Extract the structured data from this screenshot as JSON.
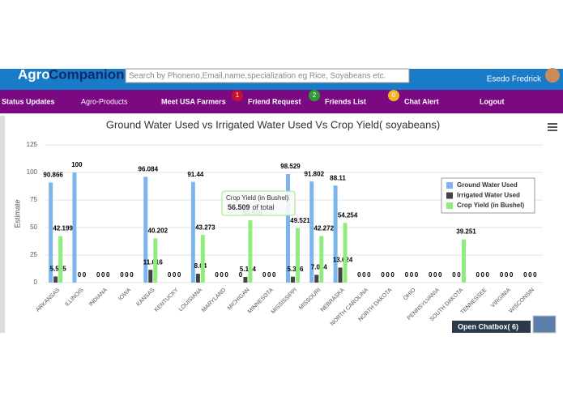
{
  "header": {
    "logo_a": "Agro",
    "logo_b": "Companion",
    "search_placeholder": "Search by Phoneno,Email,name,specialization eg Rice, Soyabeans etc.",
    "user": "Esedo Fredrick"
  },
  "nav": [
    {
      "label": "Status Updates"
    },
    {
      "label": "Agro-Products"
    },
    {
      "label": "Meet USA Farmers"
    },
    {
      "badge": 1,
      "badge_color": "#c8102e",
      "label": "Friend Request"
    },
    {
      "badge": 2,
      "badge_color": "#2e9b2e",
      "label": "Friends List"
    },
    {
      "badge": 0,
      "badge_color": "#f0b323",
      "label": "Chat Alert"
    },
    {
      "label": "Logout"
    }
  ],
  "chart_data": {
    "type": "bar",
    "title": "Ground Water Used vs Irrigated Water Used Vs Crop Yield( soyabeans)",
    "y_label": "Estimate",
    "categories": [
      "ARKANSAS",
      "ILLINOIS",
      "INDIANA",
      "IOWA",
      "KANSAS",
      "KENTUCKY",
      "LOUISIANA",
      "MARYLAND",
      "MICHIGAN",
      "MINNESOTA",
      "MISSISSIPPI",
      "MISSOURI",
      "NEBRASKA",
      "NORTH CAROLINA",
      "NORTH DAKOTA",
      "OHIO",
      "PENNSYLVANIA",
      "SOUTH DAKOTA",
      "TENNESSEE",
      "VIRGINIA",
      "WISCONSIN"
    ],
    "series": [
      {
        "name": "Ground Water Used",
        "color": "#7cb5ec",
        "values": [
          90.866,
          100,
          0,
          0,
          96.084,
          0,
          91.44,
          0,
          0,
          0,
          98.529,
          91.802,
          88.11,
          0,
          0,
          0,
          0,
          0,
          0,
          0,
          0
        ]
      },
      {
        "name": "Irrigated Water Used",
        "color": "#434348",
        "values": [
          5.545,
          0,
          0,
          0,
          11.616,
          0,
          8.04,
          0,
          5.154,
          0,
          5.356,
          7.054,
          13.624,
          0,
          0,
          0,
          0,
          0,
          0,
          0,
          0
        ]
      },
      {
        "name": "Crop Yield (in Bushel)",
        "color": "#90ed7d",
        "values": [
          42.199,
          0,
          0,
          0,
          40.202,
          0,
          43.273,
          0,
          56.509,
          0,
          49.521,
          42.272,
          54.254,
          0,
          0,
          0,
          0,
          39.251,
          0,
          0,
          0
        ]
      }
    ],
    "ylim": [
      0,
      125
    ],
    "yticks": [
      0,
      25,
      50,
      75,
      100,
      125
    ],
    "grid": true,
    "legend": "top-right"
  },
  "tooltip": {
    "suffix": "of total"
  },
  "chatbox": "Open Chatbox( 6)"
}
